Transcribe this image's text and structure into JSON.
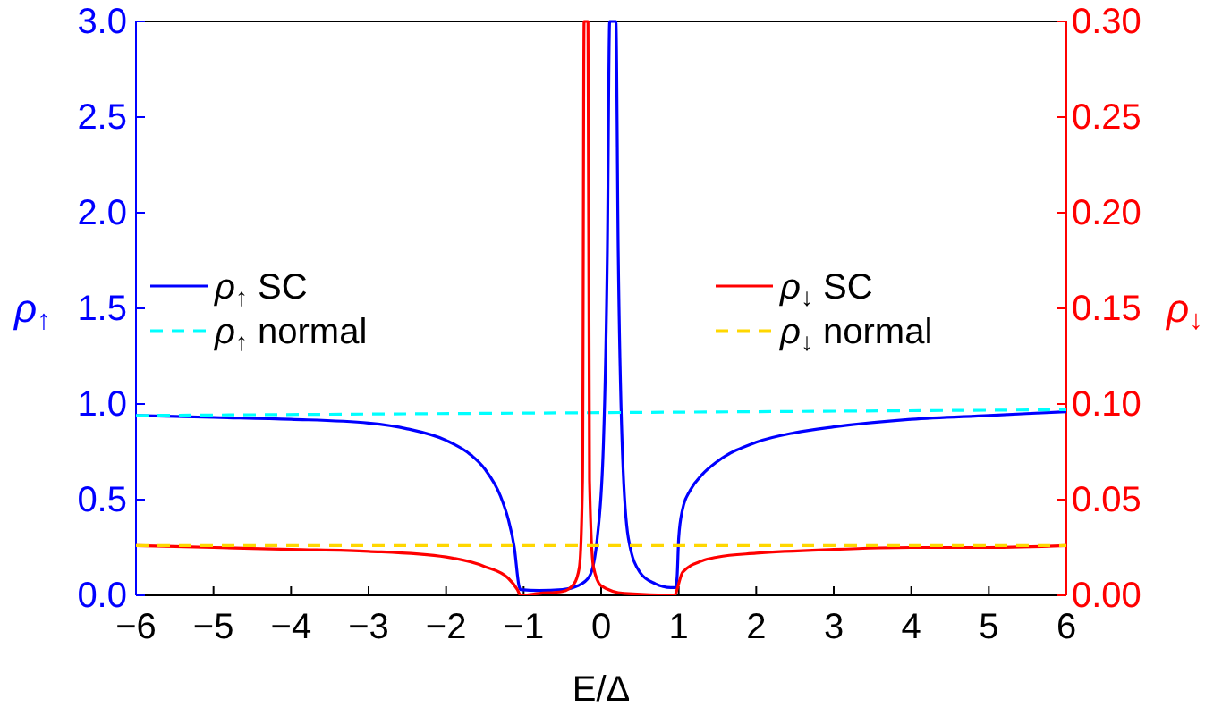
{
  "chart_data": {
    "type": "line",
    "xlabel": "E/Δ",
    "ylabel": "ρ$_{↑}$",
    "y2label": "ρ$_{↓}$",
    "xlim": [
      -6,
      6
    ],
    "xticks": [
      {
        "value": -6,
        "label": "−6"
      },
      {
        "value": -5,
        "label": "−5"
      },
      {
        "value": -4,
        "label": "−4"
      },
      {
        "value": -3,
        "label": "−3"
      },
      {
        "value": -2,
        "label": "−2"
      },
      {
        "value": -1,
        "label": "−1"
      },
      0,
      1,
      2,
      3,
      4,
      5,
      6
    ],
    "ylim": [
      0,
      3
    ],
    "yticks": [
      {
        "value": 0,
        "label": "0.0"
      },
      0.5,
      {
        "value": 1,
        "label": "1.0"
      },
      1.5,
      {
        "value": 2,
        "label": "2.0"
      },
      2.5,
      {
        "value": 3,
        "label": "3.0"
      }
    ],
    "y2lim": [
      0,
      0.3
    ],
    "y2ticks": [
      {
        "value": 0,
        "label": "0.00"
      },
      0.05,
      {
        "value": 0.1,
        "label": "0.10"
      },
      0.15,
      {
        "value": 0.2,
        "label": "0.20"
      },
      0.25,
      {
        "value": 0.3,
        "label": "0.30"
      }
    ],
    "grid": false,
    "legend": "left",
    "marker": "none",
    "series": [
      {
        "name": "ρ$_{↑}$ SC",
        "color": "#0000ff",
        "line_style": "solid",
        "x": [
          -6,
          -5,
          -4,
          -3,
          -2.5,
          -2,
          -1.7,
          -1.5,
          -1.3,
          -1.2,
          -1.12,
          -1.06,
          -1.04,
          -0.8,
          -0.5,
          -0.3,
          -0.15,
          -0.05,
          0.03,
          0.08,
          0.11,
          0.19,
          0.22,
          0.27,
          0.35,
          0.5,
          0.7,
          0.9,
          0.96,
          0.98,
          1.0,
          1.05,
          1.15,
          1.3,
          1.5,
          2,
          2.5,
          3,
          4,
          5,
          6
        ],
        "values": [
          0.94,
          0.93,
          0.92,
          0.9,
          0.87,
          0.81,
          0.74,
          0.66,
          0.52,
          0.4,
          0.25,
          0.05,
          0.03,
          0.025,
          0.03,
          0.05,
          0.1,
          0.3,
          0.8,
          1.8,
          3.0,
          3.0,
          1.8,
          0.8,
          0.3,
          0.12,
          0.06,
          0.04,
          0.04,
          0.1,
          0.3,
          0.45,
          0.55,
          0.63,
          0.7,
          0.8,
          0.85,
          0.88,
          0.92,
          0.94,
          0.96
        ]
      },
      {
        "name": "ρ$_{↑}$ normal",
        "color": "#00ffff",
        "line_style": "dashed",
        "x": [
          -6,
          6
        ],
        "values": [
          0.94,
          0.97
        ]
      },
      {
        "name": "ρ$_{↓}$ SC",
        "color": "#ff0000",
        "line_style": "solid",
        "axis": "y2",
        "x": [
          -6,
          -5,
          -4,
          -3,
          -2,
          -1.5,
          -1.2,
          -1.08,
          -1.04,
          -0.8,
          -0.5,
          -0.35,
          -0.28,
          -0.24,
          -0.22,
          -0.17,
          -0.15,
          -0.1,
          0,
          0.3,
          0.95,
          0.97,
          1.05,
          1.3,
          1.5,
          2,
          3,
          4,
          5,
          6
        ],
        "values": [
          0.026,
          0.025,
          0.024,
          0.023,
          0.02,
          0.015,
          0.009,
          0.003,
          0.0,
          0.001,
          0.002,
          0.006,
          0.015,
          0.06,
          0.3,
          0.3,
          0.06,
          0.015,
          0.005,
          0.001,
          0.0,
          0.002,
          0.012,
          0.018,
          0.02,
          0.022,
          0.024,
          0.025,
          0.025,
          0.026
        ]
      },
      {
        "name": "ρ$_{↓}$ normal",
        "color": "#ffd700",
        "line_style": "dashed",
        "axis": "y2",
        "x": [
          -6,
          6
        ],
        "values": [
          0.026,
          0.026
        ]
      }
    ]
  }
}
